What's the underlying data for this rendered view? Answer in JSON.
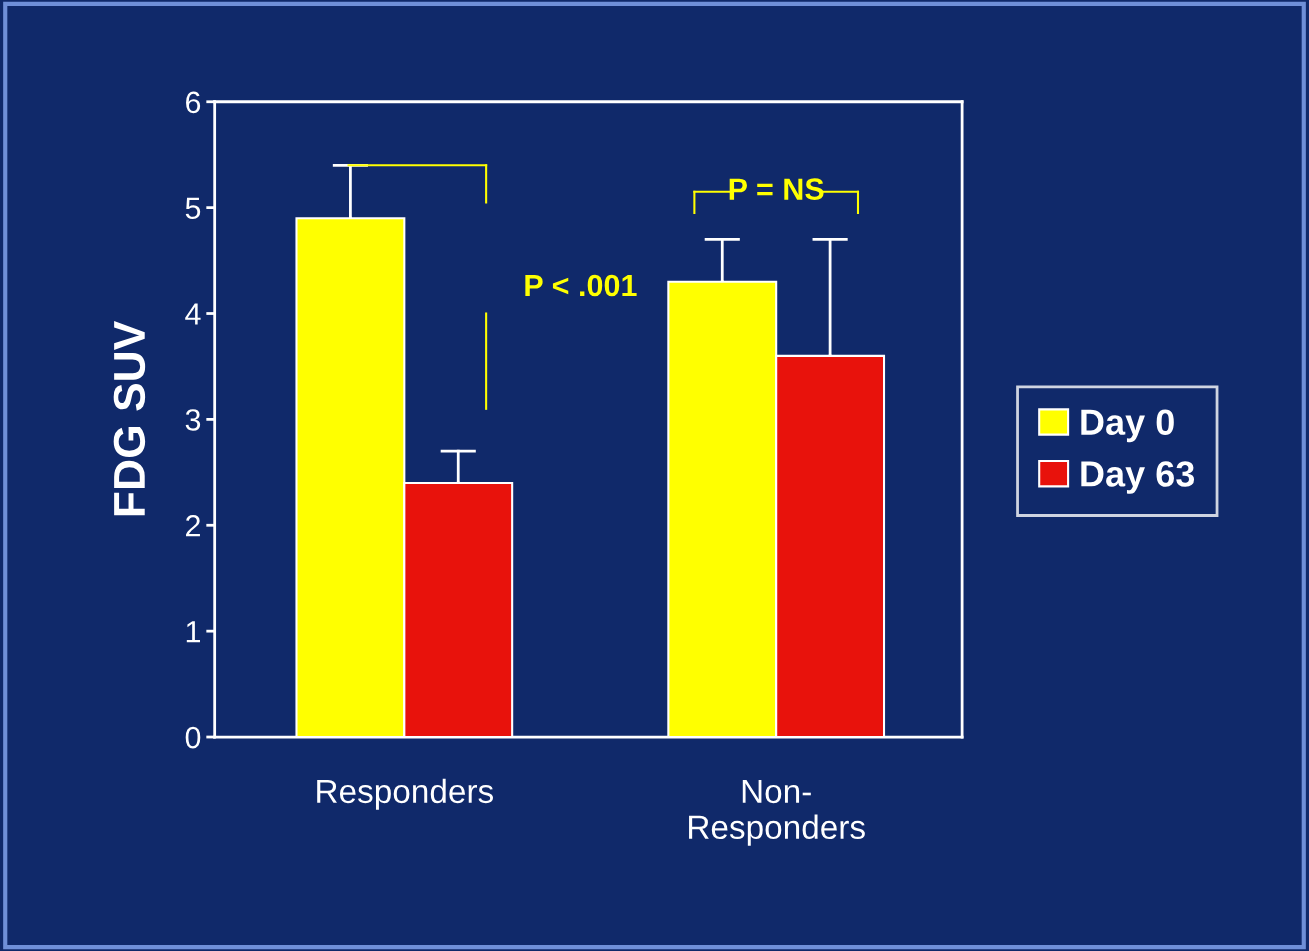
{
  "chart_data": {
    "type": "bar",
    "ylabel": "FDG SUV",
    "categories": [
      "Responders",
      "Non-\nResponders"
    ],
    "series": [
      {
        "name": "Day 0",
        "color": "#ffff00",
        "values": [
          4.9,
          4.3
        ],
        "errors": [
          [
            4.9,
            5.4
          ],
          [
            4.3,
            4.7
          ]
        ]
      },
      {
        "name": "Day 63",
        "color": "#e8120c",
        "values": [
          2.4,
          3.6
        ],
        "errors": [
          [
            2.4,
            2.7
          ],
          [
            3.6,
            4.7
          ]
        ]
      }
    ],
    "ylim": [
      0,
      6
    ],
    "yticks": [
      0,
      1,
      2,
      3,
      4,
      5,
      6
    ],
    "grid": false,
    "legend": "right",
    "annotations": [
      "P < .001",
      "P = NS"
    ]
  }
}
